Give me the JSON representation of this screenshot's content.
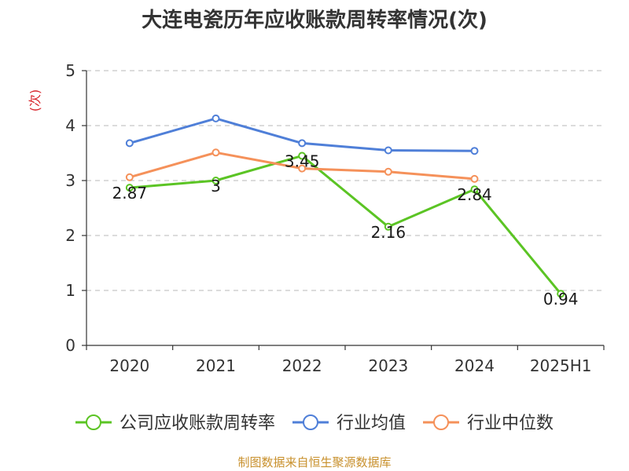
{
  "chart_data": {
    "type": "line",
    "title": "大连电瓷历年应收账款周转率情况(次)",
    "ylabel": "(次)",
    "xlabel": "",
    "categories": [
      "2020",
      "2021",
      "2022",
      "2023",
      "2024",
      "2025H1"
    ],
    "ylim": [
      0,
      5
    ],
    "yticks": [
      0,
      1,
      2,
      3,
      4,
      5
    ],
    "grid": true,
    "legend_position": "bottom",
    "series": [
      {
        "name": "公司应收账款周转率",
        "color": "#5bc424",
        "show_labels": true,
        "values": [
          2.87,
          3,
          3.45,
          2.16,
          2.84,
          0.94
        ],
        "labels": [
          "2.87",
          "3",
          "3.45",
          "2.16",
          "2.84",
          "0.94"
        ]
      },
      {
        "name": "行业均值",
        "color": "#4f7fd8",
        "show_labels": false,
        "values": [
          3.68,
          4.13,
          3.68,
          3.55,
          3.54,
          null
        ]
      },
      {
        "name": "行业中位数",
        "color": "#f5915a",
        "show_labels": false,
        "values": [
          3.06,
          3.51,
          3.22,
          3.16,
          3.03,
          null
        ]
      }
    ]
  },
  "source": "制图数据来自恒生聚源数据库"
}
